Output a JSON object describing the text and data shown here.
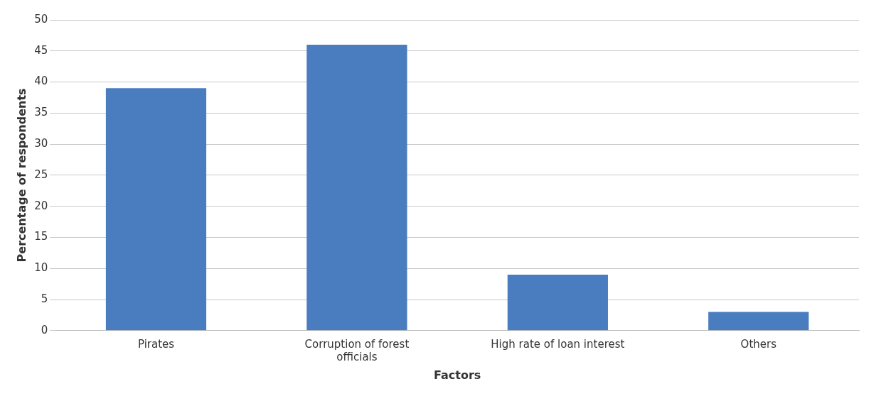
{
  "chart_data": {
    "type": "bar",
    "xlabel": "Factors",
    "ylabel": "Percentage of respondents",
    "categories": [
      "Pirates",
      "Corruption of forest officials",
      "High rate of loan interest",
      "Others"
    ],
    "values": [
      39,
      46,
      9,
      3
    ],
    "color": "#4a7cc0",
    "ylim": [
      0,
      50
    ],
    "yticks": [
      0,
      5,
      10,
      15,
      20,
      25,
      30,
      35,
      40,
      45,
      50
    ],
    "grid": "y",
    "legend": false
  }
}
